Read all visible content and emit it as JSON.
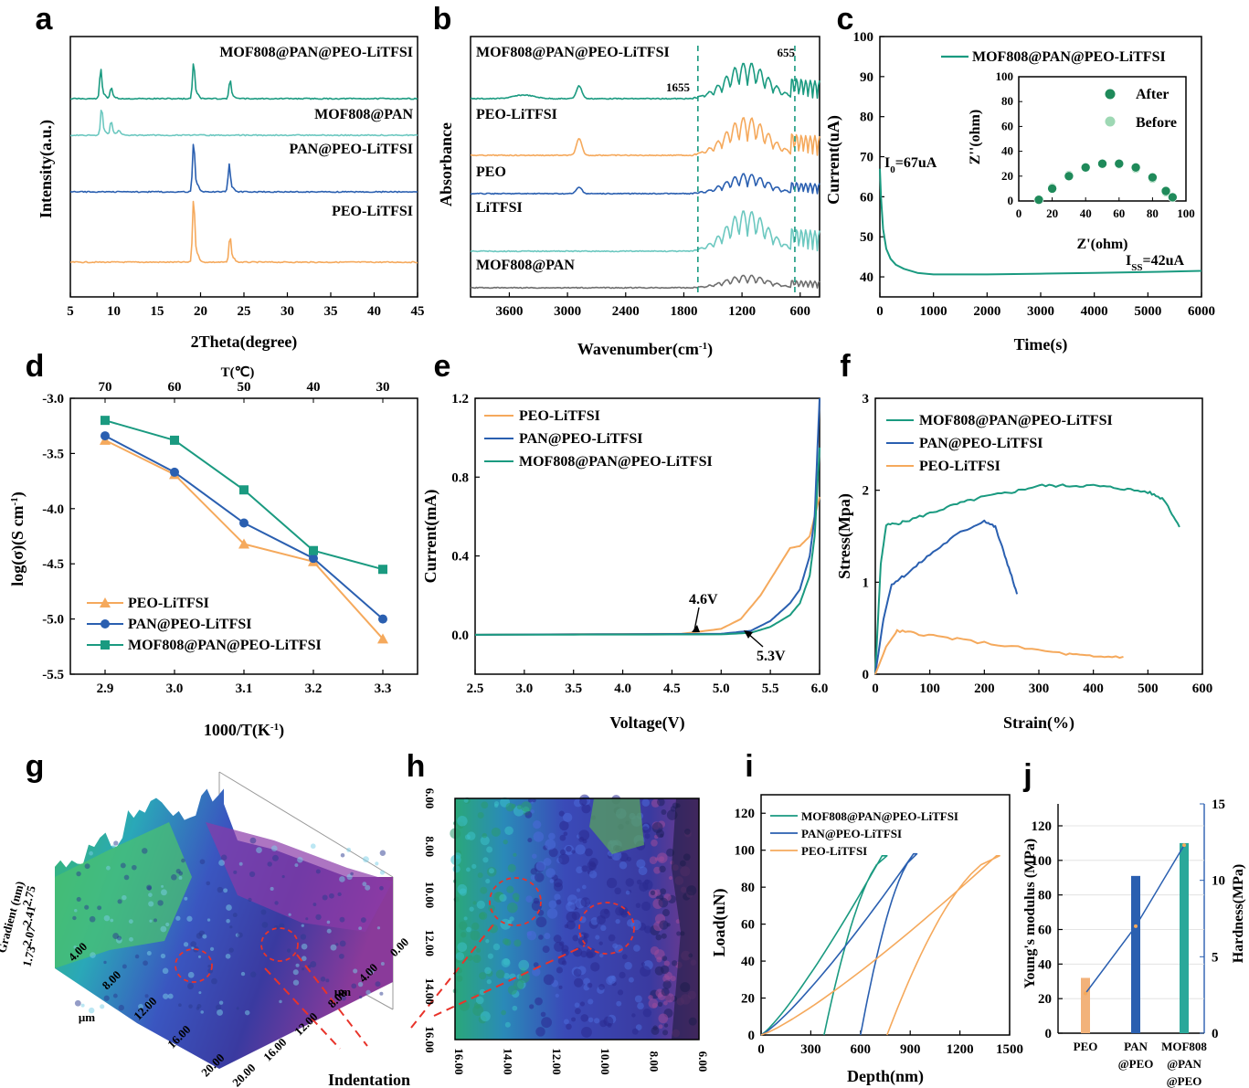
{
  "colors": {
    "teal": "#1a9a80",
    "lightteal": "#6cc8c0",
    "blue": "#2a5fb0",
    "orange": "#f5a95c",
    "gray": "#6e6e6e",
    "lightgreen": "#9ed8b4",
    "darkgreen": "#1f8a5a"
  },
  "panels": {
    "a": {
      "letter": "a",
      "xlabel": "2Theta(degree)",
      "ylabel": "Intensity(a.u.)",
      "ticks": [
        "5",
        "10",
        "15",
        "20",
        "25",
        "30",
        "35",
        "40",
        "45"
      ],
      "traces": [
        "MOF808@PAN@PEO-LiTFSI",
        "MOF808@PAN",
        "PAN@PEO-LiTFSI",
        "PEO-LiTFSI"
      ]
    },
    "b": {
      "letter": "b",
      "xlabel": "Wavenumber(cm",
      "xlabel_sup": "-1",
      "xlabel_end": ")",
      "ylabel": "Absorbance",
      "ticks": [
        "3600",
        "3000",
        "2400",
        "1800",
        "1200",
        "600"
      ],
      "traces": [
        "MOF808@PAN@PEO-LiTFSI",
        "PEO-LiTFSI",
        "PEO",
        "LiTFSI",
        "MOF808@PAN"
      ],
      "marks": [
        "1655",
        "655"
      ]
    },
    "c": {
      "letter": "c",
      "xlabel": "Time(s)",
      "ylabel": "Current(uA)",
      "xticks": [
        "0",
        "1000",
        "2000",
        "3000",
        "4000",
        "5000",
        "6000"
      ],
      "yticks": [
        "40",
        "50",
        "60",
        "70",
        "80",
        "90",
        "100"
      ],
      "legend": "MOF808@PAN@PEO-LiTFSI",
      "i0": "I",
      "i0_sub": "0",
      "i0_val": "=67uA",
      "iss": "I",
      "iss_sub": "SS",
      "iss_val": "=42uA",
      "inset": {
        "xlabel": "Z'(ohm)",
        "ylabel": "Z''(ohm)",
        "xticks": [
          "0",
          "20",
          "40",
          "60",
          "80",
          "100"
        ],
        "yticks": [
          "0",
          "20",
          "40",
          "60",
          "80",
          "100"
        ],
        "legend": [
          "After",
          "Before"
        ]
      }
    },
    "d": {
      "letter": "d",
      "xlabel": "1000/T(K",
      "xlabel_sup": "-1",
      "xlabel_end": ")",
      "ylabel": "log(σ)(S cm",
      "ylabel_sup": "-1",
      "ylabel_end": ")",
      "top_label": "T(℃)",
      "top_ticks": [
        "70",
        "60",
        "50",
        "40",
        "30"
      ],
      "xticks": [
        "2.9",
        "3.0",
        "3.1",
        "3.2",
        "3.3"
      ],
      "yticks": [
        "-3.0",
        "-3.5",
        "-4.0",
        "-4.5",
        "-5.0",
        "-5.5"
      ]
    },
    "e": {
      "letter": "e",
      "xlabel": "Voltage(V)",
      "ylabel": "Current(mA)",
      "xticks": [
        "2.5",
        "3.0",
        "3.5",
        "4.0",
        "4.5",
        "5.0",
        "5.5",
        "6.0"
      ],
      "yticks": [
        "0.0",
        "0.4",
        "0.8",
        "1.2"
      ],
      "annotations": [
        "4.6V",
        "5.3V"
      ]
    },
    "f": {
      "letter": "f",
      "xlabel": "Strain(%)",
      "ylabel": "Stress(Mpa)",
      "xticks": [
        "0",
        "100",
        "200",
        "300",
        "400",
        "500",
        "600"
      ],
      "yticks": [
        "0",
        "1",
        "2",
        "3"
      ]
    },
    "g": {
      "letter": "g",
      "axis_labels": [
        "μm",
        "μm",
        "Gradient (nm)"
      ],
      "left_ticks": [
        "4.00",
        "8.00",
        "12.00",
        "16.00",
        "20.00"
      ],
      "right_ticks": [
        "20.00",
        "16.00",
        "12.00",
        "8.00",
        "4.00",
        "0.00"
      ],
      "z_ticks": [
        "2.75",
        "2.41",
        "2.07",
        "1.73"
      ],
      "caption": "Indentation"
    },
    "h": {
      "letter": "h",
      "left_ticks": [
        "6.00",
        "8.00",
        "10.00",
        "12.00",
        "14.00",
        "16.00"
      ],
      "bottom_ticks": [
        "16.00",
        "14.00",
        "12.00",
        "10.00",
        "8.00",
        "6.00"
      ]
    },
    "i": {
      "letter": "i",
      "xlabel": "Depth(nm)",
      "ylabel": "Load(uN)",
      "xticks": [
        "0",
        "300",
        "600",
        "900",
        "1200",
        "1500"
      ],
      "yticks": [
        "0",
        "20",
        "40",
        "60",
        "80",
        "100",
        "120"
      ]
    },
    "j": {
      "letter": "j",
      "ylabel": "Young's modulus (MPa)",
      "ylabel2": "Hardness(MPa)",
      "yticks": [
        "0",
        "20",
        "40",
        "60",
        "80",
        "100",
        "120"
      ],
      "y2ticks": [
        "0",
        "5",
        "10",
        "15"
      ],
      "categories": [
        [
          "PEO"
        ],
        [
          "PAN",
          "@PEO"
        ],
        [
          "MOF808",
          "@PAN",
          "@PEO"
        ]
      ]
    }
  },
  "chart_data": [
    {
      "type": "line",
      "title": "",
      "xlabel": "2Theta(degree)",
      "ylabel": "Intensity(a.u.)",
      "xlim": [
        5,
        45
      ],
      "series": [
        {
          "name": "MOF808@PAN@PEO-LiTFSI",
          "peaks": [
            [
              8.5,
              0.8
            ],
            [
              9.7,
              0.3
            ],
            [
              19.2,
              1.0
            ],
            [
              23.4,
              0.5
            ]
          ]
        },
        {
          "name": "MOF808@PAN",
          "peaks": [
            [
              8.6,
              1.0
            ],
            [
              9.7,
              0.5
            ],
            [
              10.6,
              0.2
            ]
          ]
        },
        {
          "name": "PAN@PEO-LiTFSI",
          "peaks": [
            [
              19.2,
              1.0
            ],
            [
              23.3,
              0.55
            ]
          ]
        },
        {
          "name": "PEO-LiTFSI",
          "peaks": [
            [
              19.2,
              1.0
            ],
            [
              23.4,
              0.4
            ]
          ]
        }
      ]
    },
    {
      "type": "line",
      "xlabel": "Wavenumber(cm-1)",
      "ylabel": "Absorbance",
      "xlim": [
        4000,
        400
      ],
      "series": [
        {
          "name": "MOF808@PAN@PEO-LiTFSI"
        },
        {
          "name": "PEO-LiTFSI"
        },
        {
          "name": "PEO"
        },
        {
          "name": "LiTFSI"
        },
        {
          "name": "MOF808@PAN"
        }
      ],
      "reference_lines": [
        1655,
        655
      ]
    },
    {
      "type": "line",
      "xlabel": "Time(s)",
      "ylabel": "Current(uA)",
      "xlim": [
        0,
        6000
      ],
      "ylim": [
        35,
        100
      ],
      "series": [
        {
          "name": "MOF808@PAN@PEO-LiTFSI",
          "x": [
            0,
            20,
            60,
            120,
            200,
            300,
            450,
            700,
            1000,
            2000,
            3000,
            4000,
            5000,
            6000
          ],
          "y": [
            67,
            60,
            52,
            47,
            44.5,
            43,
            42,
            41,
            40.6,
            40.6,
            40.8,
            41,
            41.2,
            41.5
          ]
        }
      ],
      "inset": {
        "type": "scatter",
        "series": [
          {
            "name": "After",
            "x": [
              12,
              20,
              30,
              40,
              50,
              60,
              70,
              80,
              88,
              92
            ],
            "y": [
              1,
              10,
              20,
              27,
              30,
              30,
              27,
              19,
              8,
              3
            ]
          },
          {
            "name": "Before",
            "x": [
              12,
              20,
              30,
              40,
              50,
              60,
              70,
              80,
              88,
              92
            ],
            "y": [
              1,
              11,
              21,
              27,
              30,
              29.5,
              26,
              18,
              7,
              3
            ]
          }
        ]
      }
    },
    {
      "type": "line",
      "xlabel": "1000/T(K-1)",
      "ylabel": "log(σ)(S cm-1)",
      "x": [
        2.9,
        3.0,
        3.1,
        3.2,
        3.3
      ],
      "ylim": [
        -5.5,
        -3.0
      ],
      "series": [
        {
          "name": "PEO-LiTFSI",
          "values": [
            -3.38,
            -3.69,
            -4.32,
            -4.48,
            -5.18
          ]
        },
        {
          "name": "PAN@PEO-LiTFSI",
          "values": [
            -3.34,
            -3.67,
            -4.13,
            -4.45,
            -5.0
          ]
        },
        {
          "name": "MOF808@PAN@PEO-LiTFSI",
          "values": [
            -3.2,
            -3.38,
            -3.83,
            -4.38,
            -4.55
          ]
        }
      ]
    },
    {
      "type": "line",
      "xlabel": "Voltage(V)",
      "ylabel": "Current(mA)",
      "xlim": [
        2.5,
        6.0
      ],
      "ylim": [
        -0.06,
        1.2
      ],
      "series": [
        {
          "name": "PEO-LiTFSI",
          "x": [
            2.5,
            4.6,
            5.0,
            5.2,
            5.4,
            5.6,
            5.7,
            5.8,
            5.9,
            6.0
          ],
          "y": [
            0,
            0.005,
            0.03,
            0.08,
            0.2,
            0.36,
            0.44,
            0.45,
            0.5,
            0.7
          ]
        },
        {
          "name": "PAN@PEO-LiTFSI",
          "x": [
            2.5,
            5.0,
            5.3,
            5.5,
            5.7,
            5.8,
            5.9,
            5.95,
            6.0
          ],
          "y": [
            0,
            0.005,
            0.02,
            0.07,
            0.16,
            0.23,
            0.4,
            0.6,
            1.2
          ]
        },
        {
          "name": "MOF808@PAN@PEO-LiTFSI",
          "x": [
            2.5,
            5.0,
            5.3,
            5.5,
            5.7,
            5.8,
            5.9,
            5.95,
            6.0
          ],
          "y": [
            0,
            0.002,
            0.01,
            0.04,
            0.1,
            0.16,
            0.3,
            0.5,
            0.95
          ]
        }
      ]
    },
    {
      "type": "line",
      "xlabel": "Strain(%)",
      "ylabel": "Stress(Mpa)",
      "xlim": [
        0,
        600
      ],
      "ylim": [
        0,
        3
      ],
      "series": [
        {
          "name": "MOF808@PAN@PEO-LiTFSI",
          "x": [
            0,
            10,
            20,
            50,
            100,
            150,
            200,
            250,
            300,
            350,
            400,
            450,
            500,
            530,
            558
          ],
          "y": [
            0,
            1.2,
            1.62,
            1.65,
            1.75,
            1.85,
            1.93,
            1.98,
            2.05,
            2.05,
            2.05,
            2.02,
            1.98,
            1.9,
            1.6
          ]
        },
        {
          "name": "PAN@PEO-LiTFSI",
          "x": [
            0,
            15,
            30,
            60,
            100,
            150,
            200,
            220,
            240,
            260
          ],
          "y": [
            0,
            0.6,
            0.98,
            1.1,
            1.3,
            1.52,
            1.67,
            1.6,
            1.25,
            0.87
          ]
        },
        {
          "name": "PEO-LiTFSI",
          "x": [
            0,
            20,
            40,
            80,
            150,
            250,
            350,
            400,
            455
          ],
          "y": [
            0,
            0.3,
            0.47,
            0.44,
            0.38,
            0.3,
            0.22,
            0.19,
            0.19
          ]
        }
      ]
    },
    {
      "type": "line",
      "xlabel": "Depth(nm)",
      "ylabel": "Load(uN)",
      "xlim": [
        0,
        1500
      ],
      "ylim": [
        0,
        130
      ],
      "series": [
        {
          "name": "MOF808@PAN@PEO-LiTFSI"
        },
        {
          "name": "PAN@PEO-LiTFSI"
        },
        {
          "name": "PEO-LiTFSI"
        }
      ]
    },
    {
      "type": "bar",
      "categories": [
        "PEO",
        "PAN@PEO",
        "MOF808@PAN@PEO"
      ],
      "ylabel": "Young's modulus (MPa)",
      "ylabel2": "Hardness(MPa)",
      "series": [
        {
          "name": "Young's modulus",
          "values": [
            32,
            91,
            110
          ]
        },
        {
          "name": "Hardness",
          "values": [
            2.6,
            7.0,
            12.3
          ]
        }
      ],
      "ylim": [
        0,
        120
      ],
      "y2lim": [
        0,
        15
      ]
    }
  ]
}
